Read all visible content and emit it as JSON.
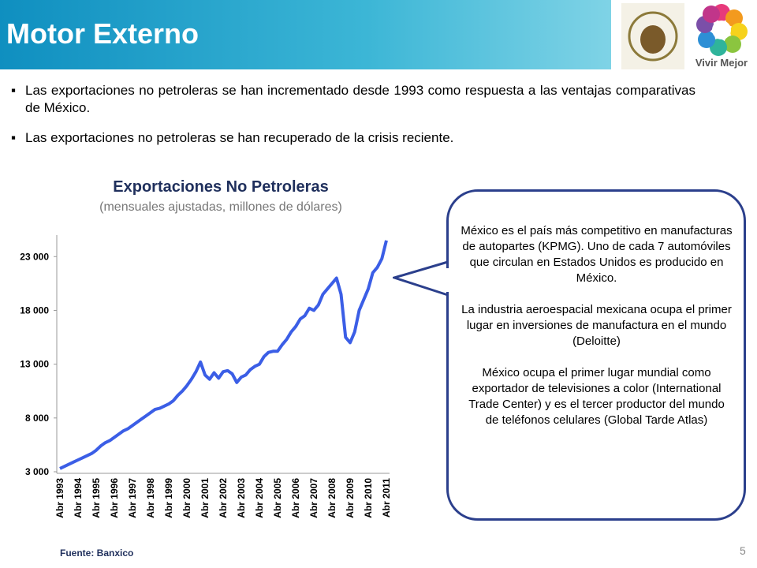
{
  "header": {
    "title": "Motor Externo",
    "logo_text": "Vivir Mejor"
  },
  "bullets": [
    "Las exportaciones no petroleras se han incrementado desde 1993 como respuesta a las ventajas comparativas de México.",
    "Las exportaciones no petroleras se han recuperado de la crisis reciente."
  ],
  "chart_data": {
    "type": "line",
    "title": "Exportaciones No Petroleras",
    "subtitle": "(mensuales ajustadas, millones de dólares)",
    "categories": [
      "Abr 1993",
      null,
      null,
      null,
      "Abr 1994",
      null,
      null,
      null,
      "Abr 1995",
      null,
      null,
      null,
      "Abr 1996",
      null,
      null,
      null,
      "Abr 1997",
      null,
      null,
      null,
      "Abr 1998",
      null,
      null,
      null,
      "Abr 1999",
      null,
      null,
      null,
      "Abr 2000",
      null,
      null,
      null,
      "Abr 2001",
      null,
      null,
      null,
      "Abr 2002",
      null,
      null,
      null,
      "Abr 2003",
      null,
      null,
      null,
      "Abr 2004",
      null,
      null,
      null,
      "Abr 2005",
      null,
      null,
      null,
      "Abr 2006",
      null,
      null,
      null,
      "Abr 2007",
      null,
      null,
      null,
      "Abr 2008",
      null,
      null,
      null,
      "Abr 2009",
      null,
      null,
      null,
      "Abr 2010",
      null,
      null,
      null,
      "Abr 2011"
    ],
    "series": [
      {
        "color": "#3b5ee6",
        "values": [
          3300,
          3500,
          3700,
          3900,
          4100,
          4300,
          4500,
          4700,
          5000,
          5400,
          5700,
          5900,
          6200,
          6500,
          6800,
          7000,
          7300,
          7600,
          7900,
          8200,
          8500,
          8800,
          8900,
          9100,
          9300,
          9600,
          10100,
          10500,
          11000,
          11600,
          12300,
          13200,
          12000,
          11600,
          12200,
          11700,
          12300,
          12400,
          12100,
          11300,
          11800,
          12000,
          12500,
          12800,
          13000,
          13700,
          14100,
          14200,
          14200,
          14800,
          15300,
          16000,
          16500,
          17200,
          17500,
          18200,
          18000,
          18500,
          19500,
          20000,
          20500,
          21000,
          19500,
          15500,
          15000,
          16000,
          18000,
          19000,
          20000,
          21500,
          22000,
          22800,
          24500
        ]
      }
    ],
    "ylim": [
      3000,
      25000
    ],
    "yticks": [
      {
        "value": 3000,
        "label": "3 000"
      },
      {
        "value": 8000,
        "label": "8 000"
      },
      {
        "value": 13000,
        "label": "13 000"
      },
      {
        "value": 18000,
        "label": "18 000"
      },
      {
        "value": 23000,
        "label": "23 000"
      }
    ],
    "source": "Fuente: Banxico"
  },
  "callout": {
    "paragraphs": [
      "México es el país más competitivo en manufacturas de autopartes (KPMG). Uno de cada 7 automóviles que circulan en Estados Unidos es producido en México.",
      "La industria aeroespacial mexicana ocupa el primer lugar en inversiones de manufactura en el mundo (Deloitte)",
      "México ocupa el primer lugar mundial como exportador de televisiones a color (International Trade Center) y es el tercer productor del mundo de teléfonos celulares (Global Tarde Atlas)"
    ]
  },
  "page_number": "5"
}
